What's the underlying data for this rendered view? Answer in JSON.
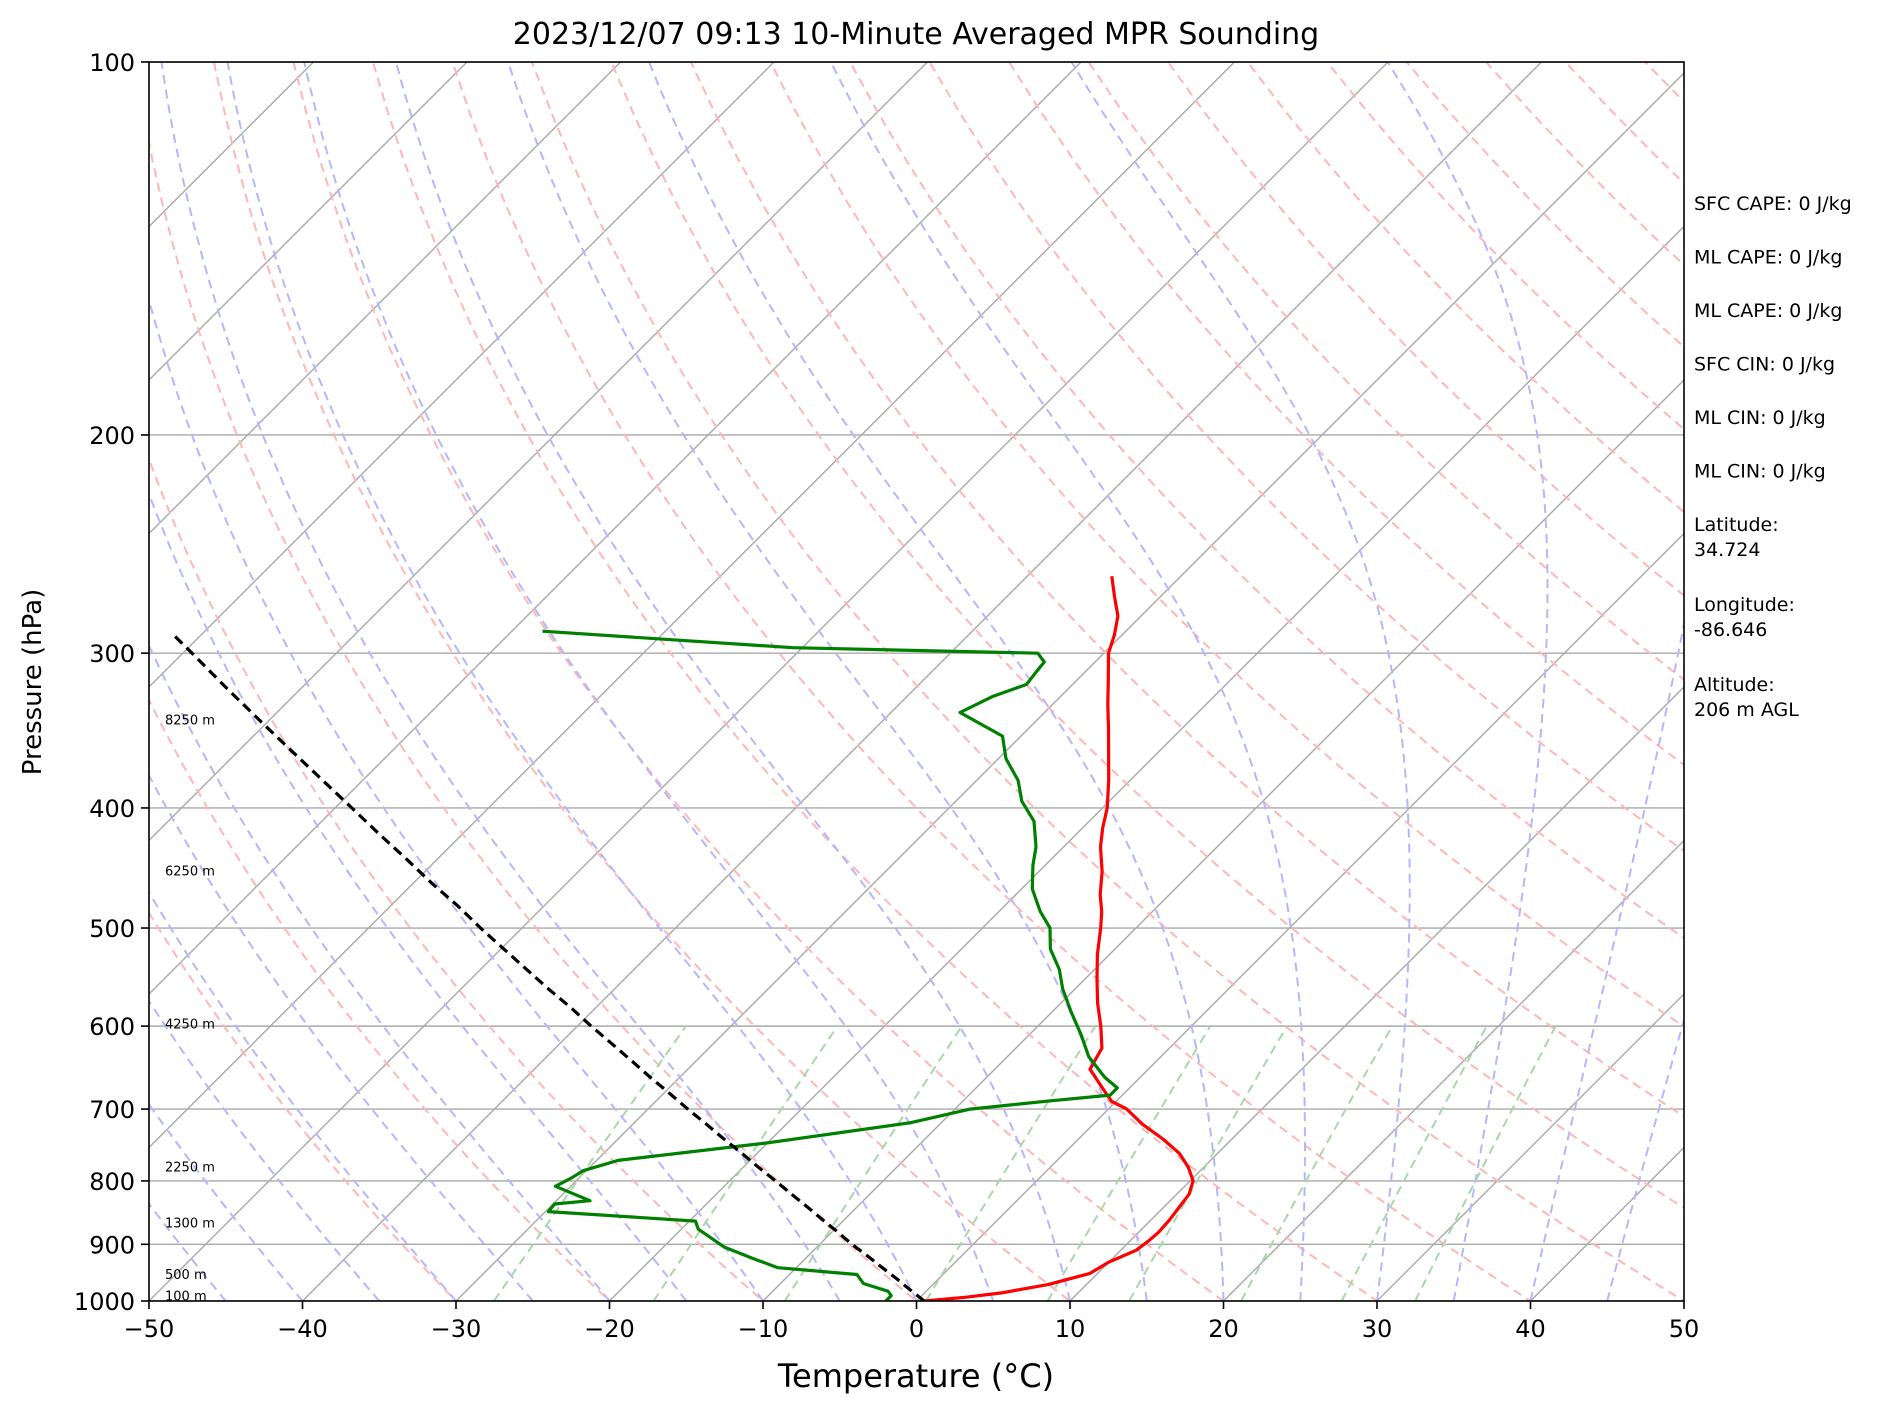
{
  "chart_data": {
    "type": "line",
    "title": "2023/12/07 09:13 10-Minute Averaged MPR Sounding",
    "xlabel": "Temperature (°C)",
    "ylabel": "Pressure (hPa)",
    "xlim": [
      -50,
      50
    ],
    "ylim": [
      1000,
      100
    ],
    "y_scale": "log",
    "skew": "skew-T log-P",
    "x_ticks": [
      "−50",
      "−40",
      "−30",
      "−20",
      "−10",
      "0",
      "10",
      "20",
      "30",
      "40",
      "50"
    ],
    "y_ticks": [
      "100",
      "200",
      "300",
      "400",
      "500",
      "600",
      "700",
      "800",
      "900",
      "1000"
    ],
    "height_labels": [
      {
        "p": 992,
        "text": "100 m"
      },
      {
        "p": 953,
        "text": "500 m"
      },
      {
        "p": 866,
        "text": "1300 m"
      },
      {
        "p": 780,
        "text": "2250 m"
      },
      {
        "p": 598,
        "text": "4250 m"
      },
      {
        "p": 450,
        "text": "6250 m"
      },
      {
        "p": 340,
        "text": "8250 m"
      }
    ],
    "series": [
      {
        "key": "temperature",
        "color": "#ff0000",
        "points": [
          [
            1000,
            0.5
          ],
          [
            993,
            3.0
          ],
          [
            985,
            5.0
          ],
          [
            970,
            7.5
          ],
          [
            950,
            9.5
          ],
          [
            930,
            10.0
          ],
          [
            910,
            11.0
          ],
          [
            895,
            11.2
          ],
          [
            880,
            11.3
          ],
          [
            860,
            11.2
          ],
          [
            840,
            11.0
          ],
          [
            820,
            10.8
          ],
          [
            800,
            10.2
          ],
          [
            780,
            9.0
          ],
          [
            760,
            7.5
          ],
          [
            740,
            5.5
          ],
          [
            720,
            3.2
          ],
          [
            700,
            1.2
          ],
          [
            690,
            -0.3
          ],
          [
            675,
            -1.6
          ],
          [
            650,
            -3.8
          ],
          [
            625,
            -4.4
          ],
          [
            600,
            -5.9
          ],
          [
            575,
            -7.6
          ],
          [
            550,
            -9.2
          ],
          [
            525,
            -10.8
          ],
          [
            500,
            -12.3
          ],
          [
            485,
            -13.3
          ],
          [
            470,
            -14.5
          ],
          [
            450,
            -15.9
          ],
          [
            430,
            -17.6
          ],
          [
            415,
            -18.7
          ],
          [
            400,
            -19.7
          ],
          [
            380,
            -21.4
          ],
          [
            360,
            -23.3
          ],
          [
            345,
            -24.8
          ],
          [
            330,
            -26.4
          ],
          [
            315,
            -28.0
          ],
          [
            300,
            -29.7
          ],
          [
            290,
            -30.5
          ],
          [
            280,
            -31.5
          ],
          [
            270,
            -33.0
          ],
          [
            260,
            -34.5
          ]
        ]
      },
      {
        "key": "dewpoint",
        "color": "#008000",
        "points": [
          [
            1000,
            -2.0
          ],
          [
            990,
            -2.0
          ],
          [
            982,
            -2.5
          ],
          [
            968,
            -4.6
          ],
          [
            952,
            -5.6
          ],
          [
            940,
            -11.2
          ],
          [
            925,
            -13.3
          ],
          [
            905,
            -16.0
          ],
          [
            875,
            -18.9
          ],
          [
            862,
            -19.6
          ],
          [
            847,
            -29.8
          ],
          [
            835,
            -29.9
          ],
          [
            830,
            -27.8
          ],
          [
            808,
            -31.0
          ],
          [
            796,
            -30.5
          ],
          [
            785,
            -30.2
          ],
          [
            770,
            -28.6
          ],
          [
            745,
            -19.9
          ],
          [
            718,
            -12.0
          ],
          [
            700,
            -9.0
          ],
          [
            690,
            -4.6
          ],
          [
            682,
            -0.8
          ],
          [
            673,
            -0.8
          ],
          [
            660,
            -2.3
          ],
          [
            635,
            -4.7
          ],
          [
            610,
            -6.6
          ],
          [
            585,
            -8.7
          ],
          [
            560,
            -10.8
          ],
          [
            540,
            -12.3
          ],
          [
            520,
            -14.2
          ],
          [
            500,
            -15.6
          ],
          [
            485,
            -17.3
          ],
          [
            465,
            -19.3
          ],
          [
            445,
            -20.8
          ],
          [
            430,
            -21.8
          ],
          [
            410,
            -23.6
          ],
          [
            395,
            -25.7
          ],
          [
            380,
            -27.3
          ],
          [
            365,
            -29.5
          ],
          [
            350,
            -31.2
          ],
          [
            335,
            -35.5
          ],
          [
            325,
            -34.4
          ],
          [
            318,
            -33.0
          ],
          [
            310,
            -33.2
          ],
          [
            305,
            -33.3
          ],
          [
            300,
            -34.3
          ],
          [
            297,
            -50.6
          ],
          [
            288,
            -68.0
          ]
        ]
      },
      {
        "key": "parcel",
        "color": "#000000",
        "points": [
          [
            1000,
            0.5
          ],
          [
            980,
            -1.1
          ],
          [
            960,
            -2.7
          ],
          [
            940,
            -4.4
          ],
          [
            920,
            -6.1
          ],
          [
            900,
            -7.9
          ],
          [
            880,
            -9.6
          ],
          [
            860,
            -11.4
          ],
          [
            840,
            -13.2
          ],
          [
            820,
            -15.1
          ],
          [
            800,
            -17.0
          ],
          [
            780,
            -19.0
          ],
          [
            760,
            -21.0
          ],
          [
            740,
            -23.1
          ],
          [
            720,
            -25.2
          ],
          [
            700,
            -27.4
          ],
          [
            680,
            -29.6
          ],
          [
            660,
            -31.9
          ],
          [
            640,
            -34.2
          ],
          [
            620,
            -36.6
          ],
          [
            600,
            -39.1
          ],
          [
            580,
            -41.6
          ],
          [
            560,
            -44.3
          ],
          [
            540,
            -47.0
          ],
          [
            520,
            -49.8
          ],
          [
            500,
            -52.7
          ],
          [
            480,
            -55.6
          ],
          [
            460,
            -58.8
          ],
          [
            440,
            -62.0
          ],
          [
            420,
            -65.4
          ],
          [
            400,
            -68.9
          ],
          [
            380,
            -72.6
          ],
          [
            360,
            -76.5
          ],
          [
            340,
            -80.6
          ],
          [
            320,
            -84.9
          ],
          [
            300,
            -89.4
          ],
          [
            290,
            -91.8
          ]
        ]
      }
    ],
    "reference_lines": {
      "isotherms_color": "#a9a9a9",
      "dry_adiabats_color": "#ffb6b6",
      "moist_adiabats_color": "#b6b6ff",
      "mixing_ratio_color": "#a8d8a8"
    }
  },
  "side_panel": [
    {
      "text": "SFC CAPE: 0 J/kg"
    },
    {
      "text": "ML CAPE: 0 J/kg"
    },
    {
      "text": "ML CAPE: 0 J/kg"
    },
    {
      "text": "SFC CIN: 0 J/kg"
    },
    {
      "text": "ML CIN: 0 J/kg"
    },
    {
      "text": "ML CIN: 0 J/kg"
    },
    {
      "text": "Latitude:\n34.724"
    },
    {
      "text": "Longitude:\n-86.646"
    },
    {
      "text": "Altitude:\n206 m AGL"
    }
  ]
}
